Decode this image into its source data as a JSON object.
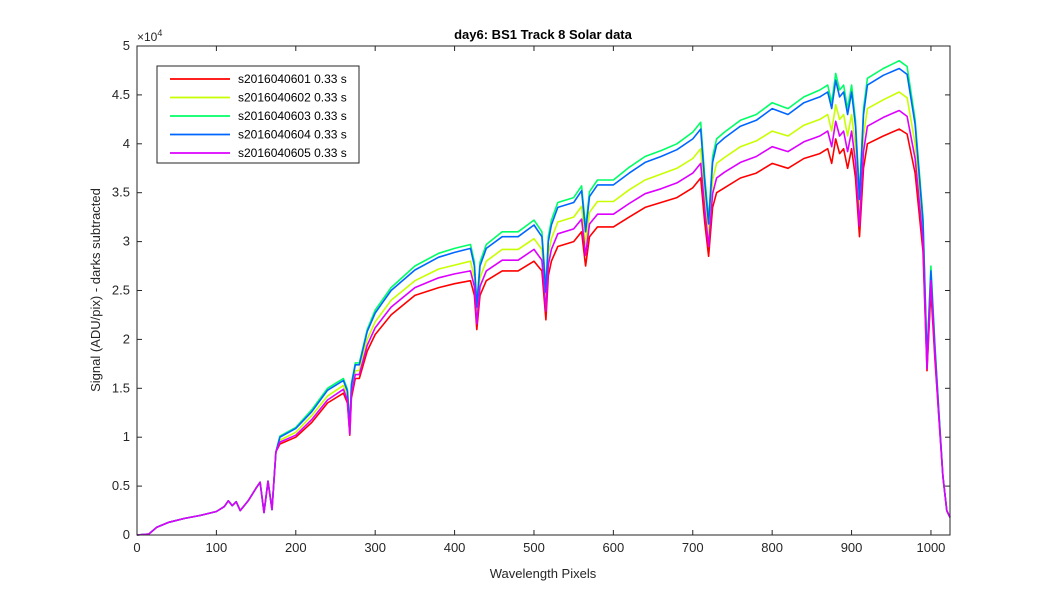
{
  "chart_data": {
    "type": "line",
    "title": "day6: BS1  Track 8 Solar data",
    "xlabel": "Wavelength Pixels",
    "ylabel": "Signal (ADU/pix) - darks subtracted",
    "y_exponent_label": "×10",
    "y_exponent_power": "4",
    "y_multiplier": 10000,
    "xlim": [
      0,
      1024
    ],
    "ylim": [
      0,
      50000
    ],
    "x_ticks": [
      0,
      100,
      200,
      300,
      400,
      500,
      600,
      700,
      800,
      900,
      1000
    ],
    "x_tick_labels": [
      "0",
      "100",
      "200",
      "300",
      "400",
      "500",
      "600",
      "700",
      "800",
      "900",
      "1000"
    ],
    "y_ticks": [
      0,
      5000,
      10000,
      15000,
      20000,
      25000,
      30000,
      35000,
      40000,
      45000,
      50000
    ],
    "y_tick_labels": [
      "0",
      "0.5",
      "1",
      "1.5",
      "2",
      "2.5",
      "3",
      "3.5",
      "4",
      "4.5",
      "5"
    ],
    "grid": false,
    "legend_position": "top-left",
    "x": [
      0,
      15,
      25,
      40,
      60,
      80,
      100,
      110,
      115,
      120,
      125,
      130,
      140,
      150,
      155,
      160,
      165,
      170,
      175,
      180,
      200,
      220,
      240,
      260,
      265,
      268,
      270,
      275,
      280,
      290,
      300,
      320,
      350,
      380,
      400,
      420,
      425,
      428,
      432,
      440,
      460,
      480,
      500,
      510,
      515,
      518,
      522,
      530,
      550,
      560,
      565,
      570,
      580,
      600,
      620,
      640,
      660,
      680,
      700,
      710,
      715,
      720,
      725,
      730,
      740,
      760,
      780,
      800,
      820,
      840,
      860,
      870,
      875,
      880,
      885,
      890,
      895,
      900,
      905,
      910,
      915,
      920,
      940,
      960,
      970,
      980,
      990,
      995,
      1000,
      1005,
      1010,
      1015,
      1020,
      1024
    ],
    "series": [
      {
        "name": "s2016040601 0.33 s",
        "color": "#ff0000",
        "values": [
          0,
          100,
          800,
          1300,
          1700,
          2000,
          2400,
          2900,
          3500,
          3000,
          3400,
          2500,
          3500,
          4800,
          5400,
          2300,
          5500,
          2600,
          8500,
          9300,
          10000,
          11500,
          13500,
          14500,
          13500,
          10200,
          14000,
          16000,
          16000,
          18800,
          20500,
          22500,
          24500,
          25300,
          25700,
          26000,
          24500,
          21000,
          24500,
          26000,
          27000,
          27000,
          28000,
          27000,
          22000,
          26500,
          28000,
          29500,
          30000,
          31000,
          27500,
          30500,
          31500,
          31500,
          32500,
          33500,
          34000,
          34500,
          35500,
          36500,
          32000,
          28500,
          33500,
          35000,
          35500,
          36500,
          37000,
          38000,
          37500,
          38500,
          39000,
          39500,
          38000,
          40500,
          39000,
          39500,
          37500,
          39500,
          36500,
          30500,
          37500,
          40000,
          40800,
          41500,
          41000,
          37000,
          29000,
          16800,
          25000,
          18000,
          12000,
          6000,
          2500,
          1800
        ]
      },
      {
        "name": "s2016040602 0.33 s",
        "color": "#c8ff00",
        "values": [
          0,
          100,
          800,
          1300,
          1700,
          2000,
          2400,
          2900,
          3500,
          3000,
          3400,
          2500,
          3500,
          4800,
          5400,
          2300,
          5500,
          2600,
          8500,
          9700,
          10500,
          12200,
          14200,
          15300,
          14200,
          10500,
          14800,
          16800,
          16800,
          20000,
          21800,
          24000,
          26000,
          27200,
          27600,
          28000,
          26300,
          22300,
          26300,
          28000,
          29200,
          29200,
          30300,
          29200,
          23700,
          28700,
          30300,
          32000,
          32500,
          33600,
          29700,
          33000,
          34100,
          34100,
          35300,
          36300,
          36900,
          37500,
          38500,
          39500,
          34500,
          30500,
          36300,
          38000,
          38600,
          39700,
          40300,
          41300,
          40800,
          41900,
          42500,
          43000,
          41300,
          44000,
          42500,
          43000,
          40800,
          43000,
          39700,
          32800,
          40800,
          43600,
          44500,
          45300,
          44700,
          40000,
          31000,
          17500,
          26500,
          19000,
          12500,
          6000,
          2500,
          1800
        ]
      },
      {
        "name": "s2016040603 0.33 s",
        "color": "#00ff66",
        "values": [
          0,
          100,
          800,
          1300,
          1700,
          2000,
          2400,
          2900,
          3500,
          3000,
          3400,
          2500,
          3500,
          4800,
          5400,
          2300,
          5500,
          2600,
          8500,
          10100,
          11000,
          12800,
          15000,
          16000,
          14900,
          11000,
          15500,
          17600,
          17600,
          21000,
          23000,
          25300,
          27500,
          28800,
          29300,
          29700,
          27900,
          23600,
          27900,
          29700,
          31000,
          31000,
          32200,
          31000,
          25200,
          30500,
          32200,
          34000,
          34500,
          35700,
          31500,
          35100,
          36300,
          36300,
          37600,
          38700,
          39300,
          40000,
          41200,
          42200,
          36700,
          32300,
          38700,
          40500,
          41200,
          42400,
          43000,
          44200,
          43600,
          44800,
          45500,
          46000,
          44200,
          47200,
          45500,
          46000,
          43600,
          46000,
          42400,
          34800,
          43600,
          46700,
          47700,
          48500,
          47900,
          42500,
          32500,
          18000,
          27500,
          19500,
          12500,
          6000,
          2500,
          1800
        ]
      },
      {
        "name": "s2016040604 0.33 s",
        "color": "#0066ff",
        "values": [
          0,
          100,
          800,
          1300,
          1700,
          2000,
          2400,
          2900,
          3500,
          3000,
          3400,
          2500,
          3500,
          4800,
          5400,
          2300,
          5500,
          2600,
          8500,
          10000,
          10900,
          12600,
          14800,
          15800,
          14700,
          10900,
          15300,
          17400,
          17400,
          20800,
          22700,
          25000,
          27100,
          28400,
          28900,
          29300,
          27500,
          23300,
          27500,
          29300,
          30500,
          30500,
          31700,
          30500,
          24800,
          30000,
          31700,
          33500,
          34000,
          35200,
          31000,
          34600,
          35800,
          35800,
          37000,
          38100,
          38700,
          39400,
          40500,
          41500,
          36100,
          31800,
          38100,
          39900,
          40600,
          41800,
          42400,
          43600,
          43000,
          44200,
          44800,
          45300,
          43600,
          46500,
          44800,
          45300,
          43000,
          45300,
          41800,
          34300,
          43000,
          46000,
          47000,
          47700,
          47100,
          42000,
          32000,
          18000,
          27000,
          19200,
          12500,
          6000,
          2500,
          1800
        ]
      },
      {
        "name": "s2016040605 0.33 s",
        "color": "#dd00ff",
        "values": [
          0,
          100,
          800,
          1300,
          1700,
          2000,
          2400,
          2900,
          3500,
          3000,
          3400,
          2500,
          3500,
          4800,
          5400,
          2300,
          5500,
          2600,
          8500,
          9500,
          10200,
          11800,
          13800,
          14900,
          13800,
          10300,
          14400,
          16400,
          16400,
          19400,
          21200,
          23300,
          25300,
          26300,
          26700,
          27000,
          25400,
          21600,
          25400,
          27000,
          28100,
          28100,
          29200,
          28100,
          22900,
          27600,
          29200,
          30800,
          31300,
          32300,
          28600,
          31800,
          32800,
          32800,
          33900,
          34900,
          35400,
          36000,
          37000,
          38000,
          33300,
          29500,
          34900,
          36500,
          37100,
          38100,
          38700,
          39700,
          39200,
          40200,
          40800,
          41300,
          39700,
          42300,
          40800,
          41300,
          39200,
          41300,
          38100,
          31600,
          39200,
          41800,
          42700,
          43400,
          42800,
          38500,
          30000,
          17000,
          26000,
          18500,
          12000,
          6000,
          2500,
          1800
        ]
      }
    ]
  }
}
